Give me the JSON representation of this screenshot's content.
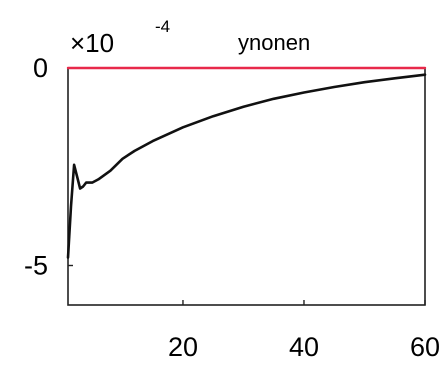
{
  "chart_data": {
    "type": "line",
    "title": "ynonen",
    "axis_multiplier": {
      "base": "×10",
      "exponent": "-4"
    },
    "xlim": [
      1,
      60
    ],
    "ylim": [
      -6,
      0
    ],
    "x_ticks": [
      {
        "value": 20,
        "label": "20"
      },
      {
        "value": 40,
        "label": "40"
      },
      {
        "value": 60,
        "label": "60"
      }
    ],
    "y_ticks": [
      {
        "value": 0,
        "label": "0"
      },
      {
        "value": -5,
        "label": "-5"
      }
    ],
    "grid": false,
    "series": [
      {
        "color": "#e8294a",
        "x": [
          1,
          60
        ],
        "y": [
          0,
          0
        ]
      },
      {
        "color": "#111111",
        "x": [
          1,
          1.5,
          2,
          2.5,
          3,
          3.5,
          4,
          5,
          6,
          8,
          10,
          12,
          15,
          20,
          25,
          30,
          35,
          40,
          45,
          50,
          55,
          60
        ],
        "y": [
          -4.8,
          -3.5,
          -2.45,
          -2.75,
          -3.05,
          -3.0,
          -2.9,
          -2.9,
          -2.82,
          -2.6,
          -2.3,
          -2.1,
          -1.85,
          -1.5,
          -1.22,
          -0.98,
          -0.78,
          -0.62,
          -0.48,
          -0.36,
          -0.26,
          -0.17
        ]
      }
    ]
  }
}
